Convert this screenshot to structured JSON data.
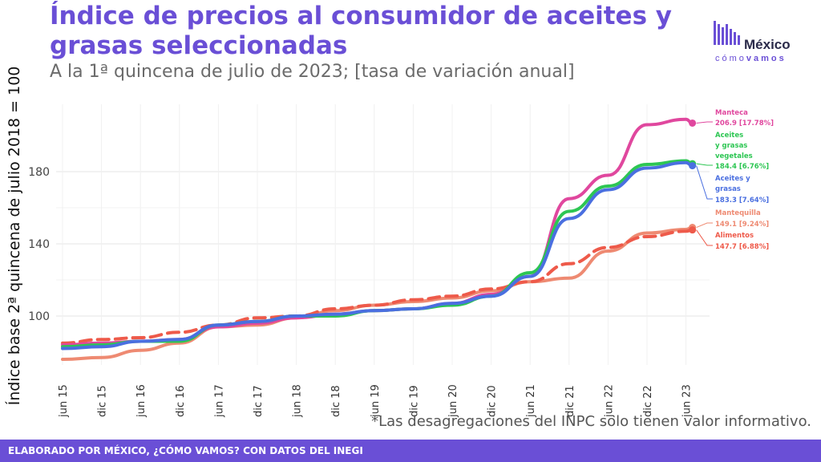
{
  "header": {
    "title": "Índice de precios al consumidor de aceites y grasas seleccionadas",
    "subtitle": "A la 1ª quincena de julio de 2023; [tasa de variación anual]"
  },
  "logo": {
    "name": "México",
    "tag_light": "cómo",
    "tag_bold": "vamos",
    "color": "#6a4fd6"
  },
  "note": "*Las desagregaciones del INPC solo tienen valor informativo.",
  "footer": "ELABORADO POR MÉXICO, ¿CÓMO VAMOS? CON DATOS DEL INEGI",
  "chart_data": {
    "type": "line",
    "ylabel": "Índice base 2ª quincena de julio 2018 = 100",
    "xlabel": "",
    "ylim": [
      70,
      212
    ],
    "y_ticks": [
      100,
      140,
      180
    ],
    "x_ticks": [
      "jun 15",
      "dic 15",
      "jun 16",
      "dic 16",
      "jun 17",
      "dic 17",
      "jun 18",
      "dic 18",
      "jun 19",
      "dic 19",
      "jun 20",
      "dic 20",
      "jun 21",
      "dic 21",
      "jun 22",
      "dic 22",
      "jun 23"
    ],
    "x": [
      "jun 15",
      "dic 15",
      "jun 16",
      "dic 16",
      "jun 17",
      "dic 17",
      "jun 18",
      "dic 18",
      "jun 19",
      "dic 19",
      "jun 20",
      "dic 20",
      "jun 21",
      "dic 21",
      "jun 22",
      "dic 22",
      "jun 23",
      "jul 23"
    ],
    "grid": true,
    "legend": "end-of-line labels",
    "series": [
      {
        "name": "Manteca",
        "label": "206.9 [17.78%]",
        "color": "#e0479e",
        "dash": false,
        "values": [
          84,
          85,
          86,
          87,
          94,
          96,
          99,
          101,
          103,
          104,
          107,
          112,
          122,
          165,
          178,
          206,
          209,
          206.9
        ]
      },
      {
        "name": "Aceites y grasas vegetales",
        "label": "184.4 [6.76%]",
        "color": "#2dc653",
        "dash": false,
        "values": [
          83,
          84,
          86,
          86,
          95,
          97,
          100,
          100,
          103,
          104,
          106,
          111,
          124,
          158,
          172,
          184,
          186,
          184.4
        ]
      },
      {
        "name": "Aceites y grasas",
        "label": "183.3 [7.64%]",
        "color": "#4a6fe0",
        "dash": false,
        "values": [
          82,
          83,
          86,
          87,
          95,
          97,
          100,
          101,
          103,
          104,
          107,
          111,
          122,
          154,
          170,
          182,
          185,
          183.3
        ]
      },
      {
        "name": "Mantequilla",
        "label": "149.1 [9.24%]",
        "color": "#ee8a72",
        "dash": false,
        "values": [
          76,
          77,
          81,
          85,
          94,
          95,
          99,
          103,
          106,
          108,
          110,
          114,
          119,
          121,
          136,
          146,
          148,
          149.1
        ]
      },
      {
        "name": "Alimentos",
        "label": "147.7 [6.88%]",
        "color": "#ee5a4a",
        "dash": true,
        "values": [
          85,
          87,
          88,
          91,
          95,
          99,
          100,
          104,
          106,
          109,
          111,
          115,
          119,
          129,
          138,
          144,
          147,
          147.7
        ]
      }
    ]
  }
}
